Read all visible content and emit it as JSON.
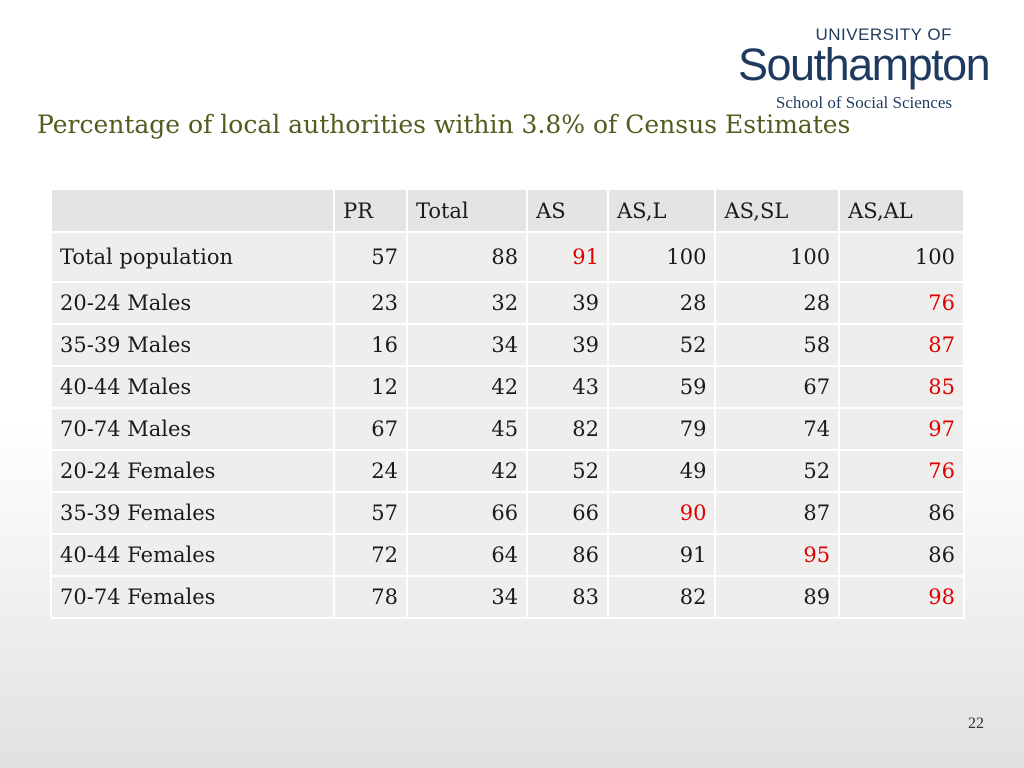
{
  "logo": {
    "top": "UNIVERSITY OF",
    "main": "Southampton",
    "sub": "School of Social Sciences"
  },
  "title": "Percentage of local authorities within 3.8% of Census Estimates",
  "table": {
    "headers": [
      "",
      "PR",
      "Total",
      "AS",
      "AS,L",
      "AS,SL",
      "AS,AL"
    ],
    "rows": [
      {
        "label": "Total population",
        "cells": [
          "57",
          "88",
          "91",
          "100",
          "100",
          "100"
        ],
        "highlight": [
          false,
          false,
          true,
          false,
          false,
          false
        ]
      },
      {
        "label": "20-24 Males",
        "cells": [
          "23",
          "32",
          "39",
          "28",
          "28",
          "76"
        ],
        "highlight": [
          false,
          false,
          false,
          false,
          false,
          true
        ]
      },
      {
        "label": "35-39 Males",
        "cells": [
          "16",
          "34",
          "39",
          "52",
          "58",
          "87"
        ],
        "highlight": [
          false,
          false,
          false,
          false,
          false,
          true
        ]
      },
      {
        "label": "40-44 Males",
        "cells": [
          "12",
          "42",
          "43",
          "59",
          "67",
          "85"
        ],
        "highlight": [
          false,
          false,
          false,
          false,
          false,
          true
        ]
      },
      {
        "label": "70-74 Males",
        "cells": [
          "67",
          "45",
          "82",
          "79",
          "74",
          "97"
        ],
        "highlight": [
          false,
          false,
          false,
          false,
          false,
          true
        ]
      },
      {
        "label": "20-24 Females",
        "cells": [
          "24",
          "42",
          "52",
          "49",
          "52",
          "76"
        ],
        "highlight": [
          false,
          false,
          false,
          false,
          false,
          true
        ]
      },
      {
        "label": "35-39 Females",
        "cells": [
          "57",
          "66",
          "66",
          "90",
          "87",
          "86"
        ],
        "highlight": [
          false,
          false,
          false,
          true,
          false,
          false
        ]
      },
      {
        "label": "40-44 Females",
        "cells": [
          "72",
          "64",
          "86",
          "91",
          "95",
          "86"
        ],
        "highlight": [
          false,
          false,
          false,
          false,
          true,
          false
        ]
      },
      {
        "label": "70-74 Females",
        "cells": [
          "78",
          "34",
          "83",
          "82",
          "89",
          "98"
        ],
        "highlight": [
          false,
          false,
          false,
          false,
          false,
          true
        ]
      }
    ]
  },
  "page_number": "22",
  "colors": {
    "title": "#4f5d1e",
    "highlight": "#e00000",
    "logo": "#1f3a5f",
    "header_bg": "#e4e5e2",
    "cell_bg": "#eeeeec"
  }
}
